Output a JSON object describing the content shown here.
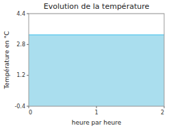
{
  "chart_data": {
    "type": "area",
    "title": "Evolution de la température",
    "x_label": "heure par heure",
    "y_label": "Température en °C",
    "x": [
      0,
      2
    ],
    "series": [
      {
        "type": "area",
        "color": "#aadeee",
        "values": [
          3.3,
          3.3
        ]
      },
      {
        "type": "line",
        "color": "#66ccee",
        "values": [
          3.3,
          3.3
        ]
      }
    ],
    "xlim": [
      0,
      2
    ],
    "ylim": [
      -0.4,
      4.4
    ],
    "xticks": [
      0,
      1,
      2
    ],
    "yticks": [
      -0.4,
      1.2,
      2.8,
      4.4
    ],
    "grid": true
  }
}
